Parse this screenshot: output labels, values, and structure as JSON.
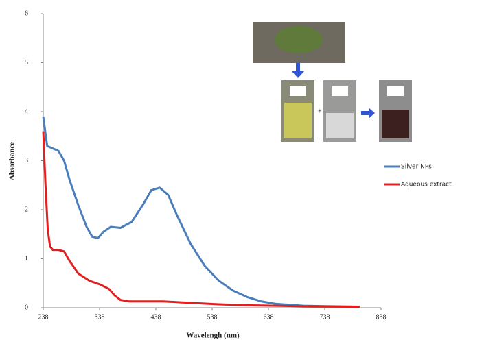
{
  "chart_data": {
    "type": "line",
    "x_label": "Wavelengh  (nm)",
    "y_label": "Absorbance",
    "xlim": [
      238,
      838
    ],
    "xticks": [
      238,
      338,
      438,
      538,
      638,
      738,
      838
    ],
    "ylim": [
      0,
      6
    ],
    "yticks": [
      0,
      1,
      2,
      3,
      4,
      5,
      6
    ],
    "series": [
      {
        "name": "Silver NPs",
        "color": "#4a7ebb",
        "x": [
          238,
          245,
          255,
          265,
          275,
          285,
          300,
          315,
          325,
          335,
          345,
          358,
          375,
          395,
          415,
          430,
          445,
          460,
          475,
          500,
          525,
          550,
          575,
          600,
          625,
          650,
          700,
          750,
          800
        ],
        "values": [
          3.9,
          3.3,
          3.25,
          3.2,
          3.0,
          2.6,
          2.1,
          1.65,
          1.45,
          1.42,
          1.55,
          1.65,
          1.63,
          1.75,
          2.1,
          2.4,
          2.45,
          2.3,
          1.9,
          1.3,
          0.85,
          0.55,
          0.35,
          0.22,
          0.13,
          0.08,
          0.04,
          0.03,
          0.02
        ]
      },
      {
        "name": "Aqueous extract",
        "color": "#e02020",
        "x": [
          238,
          242,
          246,
          250,
          255,
          265,
          275,
          285,
          300,
          320,
          340,
          355,
          365,
          375,
          390,
          450,
          500,
          550,
          600,
          700,
          800
        ],
        "values": [
          3.6,
          2.5,
          1.6,
          1.25,
          1.18,
          1.18,
          1.15,
          0.95,
          0.7,
          0.55,
          0.47,
          0.38,
          0.25,
          0.16,
          0.13,
          0.13,
          0.1,
          0.07,
          0.05,
          0.03,
          0.02
        ]
      }
    ]
  }
}
